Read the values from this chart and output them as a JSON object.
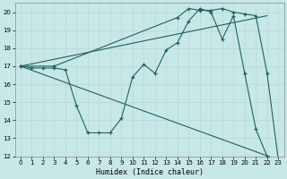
{
  "background_color": "#c8e8e8",
  "grid_color": "#e8e8e8",
  "line_color": "#206060",
  "xlabel": "Humidex (Indice chaleur)",
  "xlim": [
    -0.5,
    23.5
  ],
  "ylim": [
    12,
    20.5
  ],
  "yticks": [
    12,
    13,
    14,
    15,
    16,
    17,
    18,
    19,
    20
  ],
  "xticks": [
    0,
    1,
    2,
    3,
    4,
    5,
    6,
    7,
    8,
    9,
    10,
    11,
    12,
    13,
    14,
    15,
    16,
    17,
    18,
    19,
    20,
    21,
    22,
    23
  ],
  "lines": [
    {
      "x": [
        0,
        1,
        2,
        3,
        4,
        5,
        6,
        7,
        8,
        9,
        10,
        11,
        12,
        13,
        14,
        15,
        16,
        17,
        18,
        19,
        20,
        21,
        22
      ],
      "y": [
        17,
        16.9,
        16.9,
        16.9,
        16.8,
        14.8,
        13.3,
        13.3,
        13.3,
        14.1,
        16.4,
        17.1,
        16.6,
        17.9,
        18.3,
        19.5,
        20.2,
        20.0,
        18.5,
        19.8,
        16.6,
        13.5,
        12.0
      ],
      "marker": true
    },
    {
      "x": [
        0,
        22
      ],
      "y": [
        17,
        19.8
      ],
      "marker": false
    },
    {
      "x": [
        0,
        23
      ],
      "y": [
        17,
        11.8
      ],
      "marker": false
    },
    {
      "x": [
        0,
        3,
        14,
        15,
        16,
        17,
        18,
        19,
        20,
        21,
        22,
        23
      ],
      "y": [
        17,
        17,
        19.7,
        20.2,
        20.1,
        20.1,
        20.2,
        20.0,
        19.9,
        19.8,
        16.6,
        11.8
      ],
      "marker": true
    }
  ]
}
